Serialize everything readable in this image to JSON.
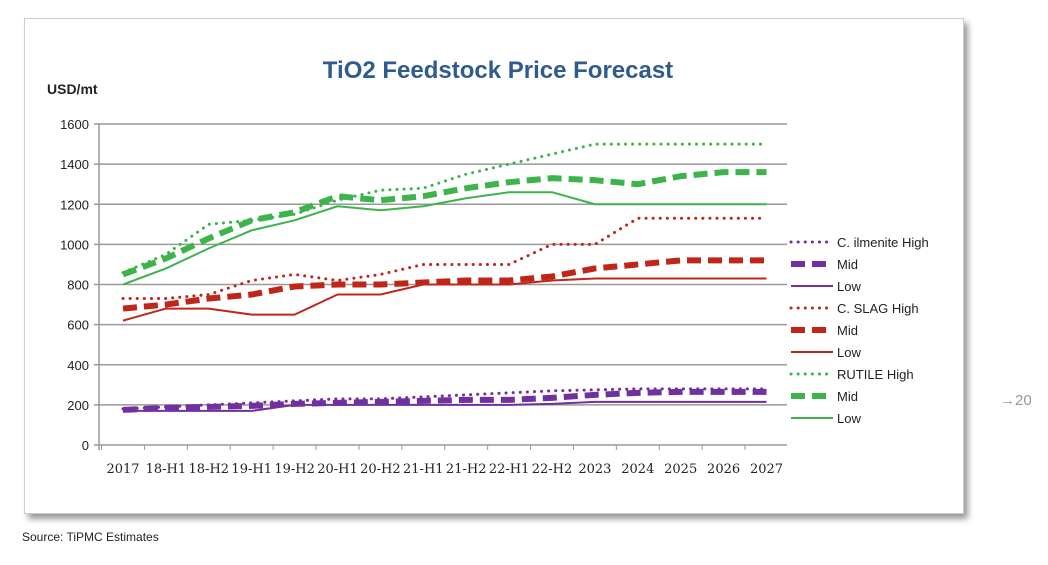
{
  "chart_data": {
    "type": "line",
    "title": "TiO2 Feedstock Price Forecast",
    "ylabel": "USD/mt",
    "xlabel": "",
    "ylim": [
      0,
      1600
    ],
    "yticks": [
      0,
      200,
      400,
      600,
      800,
      1000,
      1200,
      1400,
      1600
    ],
    "grid": true,
    "legend_position": "right",
    "categories": [
      "2017",
      "18-H1",
      "18-H2",
      "19-H1",
      "19-H2",
      "20-H1",
      "20-H2",
      "21-H1",
      "21-H2",
      "22-H1",
      "22-H2",
      "2023",
      "2024",
      "2025",
      "2026",
      "2027"
    ],
    "series": [
      {
        "name": "C. ilmenite High",
        "legend": "C. ilmenite High",
        "color": "#7030a0",
        "style": "dotted",
        "values": [
          180,
          190,
          200,
          210,
          220,
          230,
          230,
          240,
          250,
          260,
          270,
          275,
          280,
          280,
          280,
          280
        ]
      },
      {
        "name": "C. ilmenite Mid",
        "legend": "Mid",
        "color": "#7030a0",
        "style": "dashed",
        "values": [
          175,
          185,
          190,
          195,
          205,
          210,
          215,
          220,
          225,
          225,
          235,
          250,
          260,
          265,
          265,
          265
        ]
      },
      {
        "name": "C. ilmenite Low",
        "legend": "Low",
        "color": "#7030a0",
        "style": "solid",
        "values": [
          170,
          170,
          170,
          170,
          200,
          200,
          200,
          200,
          200,
          200,
          205,
          215,
          215,
          215,
          215,
          215
        ]
      },
      {
        "name": "C. SLAG High",
        "legend": "C. SLAG High",
        "color": "#c0251a",
        "style": "dotted",
        "values": [
          730,
          730,
          750,
          820,
          850,
          820,
          850,
          900,
          900,
          900,
          1000,
          1000,
          1130,
          1130,
          1130,
          1130
        ]
      },
      {
        "name": "C. SLAG Mid",
        "legend": "Mid",
        "color": "#c0251a",
        "style": "dashed",
        "values": [
          680,
          700,
          730,
          750,
          790,
          800,
          800,
          810,
          820,
          820,
          840,
          880,
          900,
          920,
          920,
          920
        ]
      },
      {
        "name": "C. SLAG Low",
        "legend": "Low",
        "color": "#c0251a",
        "style": "solid",
        "values": [
          620,
          680,
          680,
          650,
          650,
          750,
          750,
          800,
          800,
          800,
          820,
          830,
          830,
          830,
          830,
          830
        ]
      },
      {
        "name": "RUTILE High",
        "legend": "RUTILE High",
        "color": "#3cb44b",
        "style": "dotted",
        "values": [
          860,
          950,
          1100,
          1120,
          1150,
          1220,
          1270,
          1280,
          1350,
          1400,
          1450,
          1500,
          1500,
          1500,
          1500,
          1500
        ]
      },
      {
        "name": "RUTILE Mid",
        "legend": "Mid",
        "color": "#3cb44b",
        "style": "dashed",
        "values": [
          850,
          930,
          1030,
          1120,
          1160,
          1240,
          1220,
          1240,
          1280,
          1310,
          1330,
          1320,
          1300,
          1340,
          1360,
          1360
        ]
      },
      {
        "name": "RUTILE Low",
        "legend": "Low",
        "color": "#3cb44b",
        "style": "solid",
        "values": [
          800,
          880,
          980,
          1070,
          1120,
          1190,
          1170,
          1190,
          1230,
          1260,
          1260,
          1200,
          1200,
          1200,
          1200,
          1200
        ]
      }
    ]
  },
  "source": "Source: TiPMC Estimates",
  "page_marker": "→20"
}
